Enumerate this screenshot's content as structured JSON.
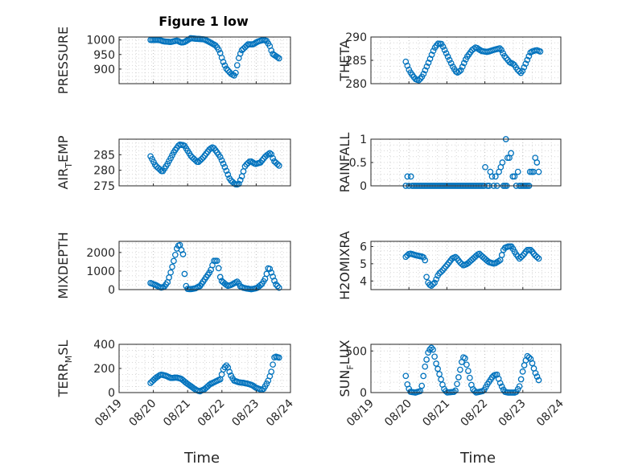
{
  "figure": {
    "title": "Figure 1 low",
    "xlabel": "Time",
    "marker_color": "#0072bd"
  },
  "chart_data": [
    {
      "type": "scatter",
      "ylabel_main": "PRESSURE",
      "ylabel_sub": "",
      "ylabel_tail": "",
      "xlim": [
        "08/19",
        "08/24"
      ],
      "ylim": [
        850,
        1010
      ],
      "yticks": [
        900,
        950,
        1000
      ],
      "knots": [
        [
          0.0,
          1000
        ],
        [
          0.25,
          1000
        ],
        [
          0.4,
          995
        ],
        [
          0.6,
          993
        ],
        [
          0.8,
          998
        ],
        [
          0.9,
          991
        ],
        [
          1.0,
          992
        ],
        [
          1.2,
          1006
        ],
        [
          1.35,
          1004
        ],
        [
          1.6,
          1002
        ],
        [
          1.75,
          993
        ],
        [
          1.95,
          980
        ],
        [
          2.05,
          962
        ],
        [
          2.15,
          928
        ],
        [
          2.25,
          902
        ],
        [
          2.4,
          883
        ],
        [
          2.5,
          877
        ],
        [
          2.55,
          893
        ],
        [
          2.6,
          930
        ],
        [
          2.7,
          963
        ],
        [
          2.8,
          974
        ],
        [
          2.9,
          985
        ],
        [
          3.05,
          985
        ],
        [
          3.2,
          995
        ],
        [
          3.35,
          1000
        ],
        [
          3.45,
          997
        ],
        [
          3.55,
          978
        ],
        [
          3.62,
          953
        ],
        [
          3.72,
          945
        ],
        [
          3.82,
          937
        ]
      ],
      "x_start": "08/19 22:00",
      "x_end": "08/23 16:00",
      "n": 84
    },
    {
      "type": "scatter",
      "ylabel_main": "THETA",
      "ylabel_sub": "",
      "ylabel_tail": "",
      "xlim": [
        "08/19",
        "08/24"
      ],
      "ylim": [
        280,
        290
      ],
      "yticks": [
        280,
        285,
        290
      ],
      "knots": [
        [
          0.0,
          284.7
        ],
        [
          0.1,
          282.7
        ],
        [
          0.25,
          281.0
        ],
        [
          0.35,
          280.7
        ],
        [
          0.45,
          281.7
        ],
        [
          0.6,
          284.5
        ],
        [
          0.75,
          287.5
        ],
        [
          0.85,
          288.6
        ],
        [
          0.95,
          288.5
        ],
        [
          1.1,
          286.0
        ],
        [
          1.25,
          283.5
        ],
        [
          1.35,
          282.3
        ],
        [
          1.45,
          282.8
        ],
        [
          1.6,
          285.5
        ],
        [
          1.75,
          287.2
        ],
        [
          1.85,
          287.8
        ],
        [
          2.0,
          287.0
        ],
        [
          2.15,
          286.8
        ],
        [
          2.35,
          287.3
        ],
        [
          2.5,
          287.6
        ],
        [
          2.6,
          286.0
        ],
        [
          2.75,
          284.5
        ],
        [
          2.85,
          284.2
        ],
        [
          2.95,
          283.0
        ],
        [
          3.05,
          282.2
        ],
        [
          3.15,
          284.0
        ],
        [
          3.3,
          286.8
        ],
        [
          3.45,
          287.2
        ],
        [
          3.55,
          286.9
        ]
      ],
      "x_start": "08/19 22:00",
      "x_end": "08/23 11:00",
      "n": 84
    },
    {
      "type": "scatter",
      "ylabel_main": "AIR",
      "ylabel_sub": "T",
      "ylabel_tail": "EMP",
      "xlim": [
        "08/19",
        "08/24"
      ],
      "ylim": [
        275,
        290
      ],
      "yticks": [
        275,
        280,
        285
      ],
      "knots": [
        [
          0.0,
          284.5
        ],
        [
          0.15,
          281.5
        ],
        [
          0.35,
          279.5
        ],
        [
          0.5,
          282.0
        ],
        [
          0.7,
          286.0
        ],
        [
          0.85,
          288.3
        ],
        [
          1.0,
          288.0
        ],
        [
          1.2,
          284.5
        ],
        [
          1.4,
          282.5
        ],
        [
          1.55,
          284.0
        ],
        [
          1.75,
          286.8
        ],
        [
          1.85,
          287.5
        ],
        [
          2.05,
          284.5
        ],
        [
          2.2,
          281.0
        ],
        [
          2.35,
          277.0
        ],
        [
          2.5,
          275.5
        ],
        [
          2.6,
          275.4
        ],
        [
          2.7,
          278.0
        ],
        [
          2.8,
          281.5
        ],
        [
          2.95,
          283.0
        ],
        [
          3.1,
          282.0
        ],
        [
          3.25,
          282.5
        ],
        [
          3.4,
          284.5
        ],
        [
          3.55,
          285.7
        ],
        [
          3.65,
          283.0
        ],
        [
          3.8,
          281.5
        ]
      ],
      "x_start": "08/19 22:00",
      "x_end": "08/23 16:00",
      "n": 84
    },
    {
      "type": "scatter",
      "ylabel_main": "RAINFALL",
      "ylabel_sub": "",
      "ylabel_tail": "",
      "xlim": [
        "08/19",
        "08/24"
      ],
      "ylim": [
        0,
        1
      ],
      "yticks": [
        0,
        0.5,
        1
      ],
      "x_start": "08/19 22:00",
      "x_end": "08/23 10:00",
      "n": 84,
      "points": [
        [
          0.05,
          0.2
        ],
        [
          0.15,
          0.2
        ],
        [
          2.3,
          0.4
        ],
        [
          2.45,
          0.3
        ],
        [
          2.5,
          0.2
        ],
        [
          2.6,
          0.2
        ],
        [
          2.7,
          0.3
        ],
        [
          2.75,
          0.4
        ],
        [
          2.8,
          0.5
        ],
        [
          2.9,
          1.0
        ],
        [
          2.95,
          0.6
        ],
        [
          3.0,
          0.6
        ],
        [
          3.05,
          0.7
        ],
        [
          3.1,
          0.2
        ],
        [
          3.15,
          0.2
        ],
        [
          3.25,
          0.3
        ],
        [
          3.75,
          0.6
        ],
        [
          3.8,
          0.5
        ],
        [
          3.6,
          0.3
        ],
        [
          3.7,
          0.3
        ],
        [
          3.85,
          0.3
        ],
        [
          3.65,
          0.3
        ]
      ]
    },
    {
      "type": "scatter",
      "ylabel_main": "MIXDEPTH",
      "ylabel_sub": "",
      "ylabel_tail": "",
      "xlim": [
        "08/19",
        "08/24"
      ],
      "ylim": [
        0,
        2600
      ],
      "yticks": [
        0,
        1000,
        2000
      ],
      "knots": [
        [
          0.0,
          350
        ],
        [
          0.15,
          250
        ],
        [
          0.3,
          100
        ],
        [
          0.4,
          150
        ],
        [
          0.5,
          400
        ],
        [
          0.6,
          1000
        ],
        [
          0.7,
          1700
        ],
        [
          0.78,
          2300
        ],
        [
          0.85,
          2450
        ],
        [
          0.9,
          2150
        ],
        [
          0.95,
          1900
        ],
        [
          1.0,
          700
        ],
        [
          1.05,
          50
        ],
        [
          1.15,
          20
        ],
        [
          1.3,
          60
        ],
        [
          1.45,
          200
        ],
        [
          1.6,
          600
        ],
        [
          1.75,
          1000
        ],
        [
          1.85,
          1550
        ],
        [
          1.95,
          1550
        ],
        [
          2.05,
          500
        ],
        [
          2.15,
          350
        ],
        [
          2.25,
          200
        ],
        [
          2.35,
          250
        ],
        [
          2.45,
          350
        ],
        [
          2.55,
          450
        ],
        [
          2.6,
          200
        ],
        [
          2.7,
          100
        ],
        [
          2.8,
          60
        ],
        [
          2.95,
          20
        ],
        [
          3.1,
          80
        ],
        [
          3.25,
          300
        ],
        [
          3.35,
          600
        ],
        [
          3.45,
          1250
        ],
        [
          3.55,
          800
        ],
        [
          3.65,
          300
        ],
        [
          3.75,
          100
        ]
      ],
      "x_start": "08/19 22:00",
      "x_end": "08/23 16:00",
      "n": 84
    },
    {
      "type": "scatter",
      "ylabel_main": "H2OMIXRA",
      "ylabel_sub": "",
      "ylabel_tail": "",
      "xlim": [
        "08/19",
        "08/24"
      ],
      "ylim": [
        3.5,
        6.3
      ],
      "yticks": [
        4,
        5,
        6
      ],
      "knots": [
        [
          0.0,
          5.4
        ],
        [
          0.1,
          5.6
        ],
        [
          0.25,
          5.5
        ],
        [
          0.45,
          5.4
        ],
        [
          0.5,
          5.2
        ],
        [
          0.55,
          4.0
        ],
        [
          0.65,
          3.7
        ],
        [
          0.75,
          3.9
        ],
        [
          0.85,
          4.4
        ],
        [
          0.95,
          4.6
        ],
        [
          1.1,
          5.0
        ],
        [
          1.2,
          5.3
        ],
        [
          1.3,
          5.4
        ],
        [
          1.4,
          5.1
        ],
        [
          1.5,
          4.9
        ],
        [
          1.6,
          5.0
        ],
        [
          1.75,
          5.3
        ],
        [
          1.9,
          5.6
        ],
        [
          2.05,
          5.3
        ],
        [
          2.15,
          5.1
        ],
        [
          2.3,
          5.0
        ],
        [
          2.45,
          5.2
        ],
        [
          2.55,
          5.9
        ],
        [
          2.65,
          6.0
        ],
        [
          2.75,
          6.0
        ],
        [
          2.85,
          5.6
        ],
        [
          2.95,
          5.3
        ],
        [
          3.05,
          5.5
        ],
        [
          3.15,
          5.8
        ],
        [
          3.25,
          5.8
        ],
        [
          3.35,
          5.5
        ],
        [
          3.45,
          5.3
        ]
      ],
      "x_start": "08/19 22:00",
      "x_end": "08/23 10:00",
      "n": 84
    },
    {
      "type": "scatter",
      "ylabel_main": "TERR",
      "ylabel_sub": "M",
      "ylabel_tail": "SL",
      "xlim": [
        "08/19",
        "08/24"
      ],
      "ylim": [
        0,
        400
      ],
      "yticks": [
        0,
        200,
        400
      ],
      "knots": [
        [
          0.0,
          80
        ],
        [
          0.15,
          120
        ],
        [
          0.3,
          150
        ],
        [
          0.45,
          140
        ],
        [
          0.6,
          120
        ],
        [
          0.75,
          125
        ],
        [
          0.9,
          115
        ],
        [
          1.05,
          80
        ],
        [
          1.2,
          50
        ],
        [
          1.35,
          20
        ],
        [
          1.45,
          10
        ],
        [
          1.6,
          30
        ],
        [
          1.75,
          70
        ],
        [
          1.9,
          90
        ],
        [
          2.05,
          110
        ],
        [
          2.15,
          200
        ],
        [
          2.25,
          230
        ],
        [
          2.35,
          150
        ],
        [
          2.45,
          100
        ],
        [
          2.6,
          85
        ],
        [
          2.75,
          80
        ],
        [
          2.9,
          70
        ],
        [
          3.0,
          60
        ],
        [
          3.1,
          40
        ],
        [
          3.2,
          30
        ],
        [
          3.3,
          20
        ],
        [
          3.45,
          90
        ],
        [
          3.55,
          170
        ],
        [
          3.65,
          300
        ],
        [
          3.78,
          290
        ]
      ],
      "x_start": "08/19 22:00",
      "x_end": "08/23 16:00",
      "n": 84
    },
    {
      "type": "scatter",
      "ylabel_main": "SUN",
      "ylabel_sub": "F",
      "ylabel_tail": "LUX",
      "xlim": [
        "08/19",
        "08/24"
      ],
      "ylim": [
        0,
        580
      ],
      "yticks": [
        0,
        500
      ],
      "knots": [
        [
          0.0,
          200
        ],
        [
          0.05,
          80
        ],
        [
          0.12,
          10
        ],
        [
          0.25,
          0
        ],
        [
          0.4,
          20
        ],
        [
          0.5,
          300
        ],
        [
          0.6,
          500
        ],
        [
          0.7,
          550
        ],
        [
          0.8,
          350
        ],
        [
          0.9,
          200
        ],
        [
          1.0,
          50
        ],
        [
          1.08,
          0
        ],
        [
          1.3,
          10
        ],
        [
          1.4,
          200
        ],
        [
          1.5,
          420
        ],
        [
          1.55,
          430
        ],
        [
          1.65,
          250
        ],
        [
          1.75,
          50
        ],
        [
          1.85,
          0
        ],
        [
          2.05,
          20
        ],
        [
          2.15,
          100
        ],
        [
          2.3,
          200
        ],
        [
          2.4,
          220
        ],
        [
          2.5,
          100
        ],
        [
          2.6,
          10
        ],
        [
          2.7,
          0
        ],
        [
          2.9,
          0
        ],
        [
          3.0,
          80
        ],
        [
          3.1,
          300
        ],
        [
          3.2,
          440
        ],
        [
          3.3,
          400
        ],
        [
          3.4,
          250
        ],
        [
          3.5,
          150
        ]
      ],
      "x_start": "08/19 22:00",
      "x_end": "08/23 10:00",
      "n": 84
    }
  ],
  "xticks": [
    "08/19",
    "08/20",
    "08/21",
    "08/22",
    "08/23",
    "08/24"
  ]
}
